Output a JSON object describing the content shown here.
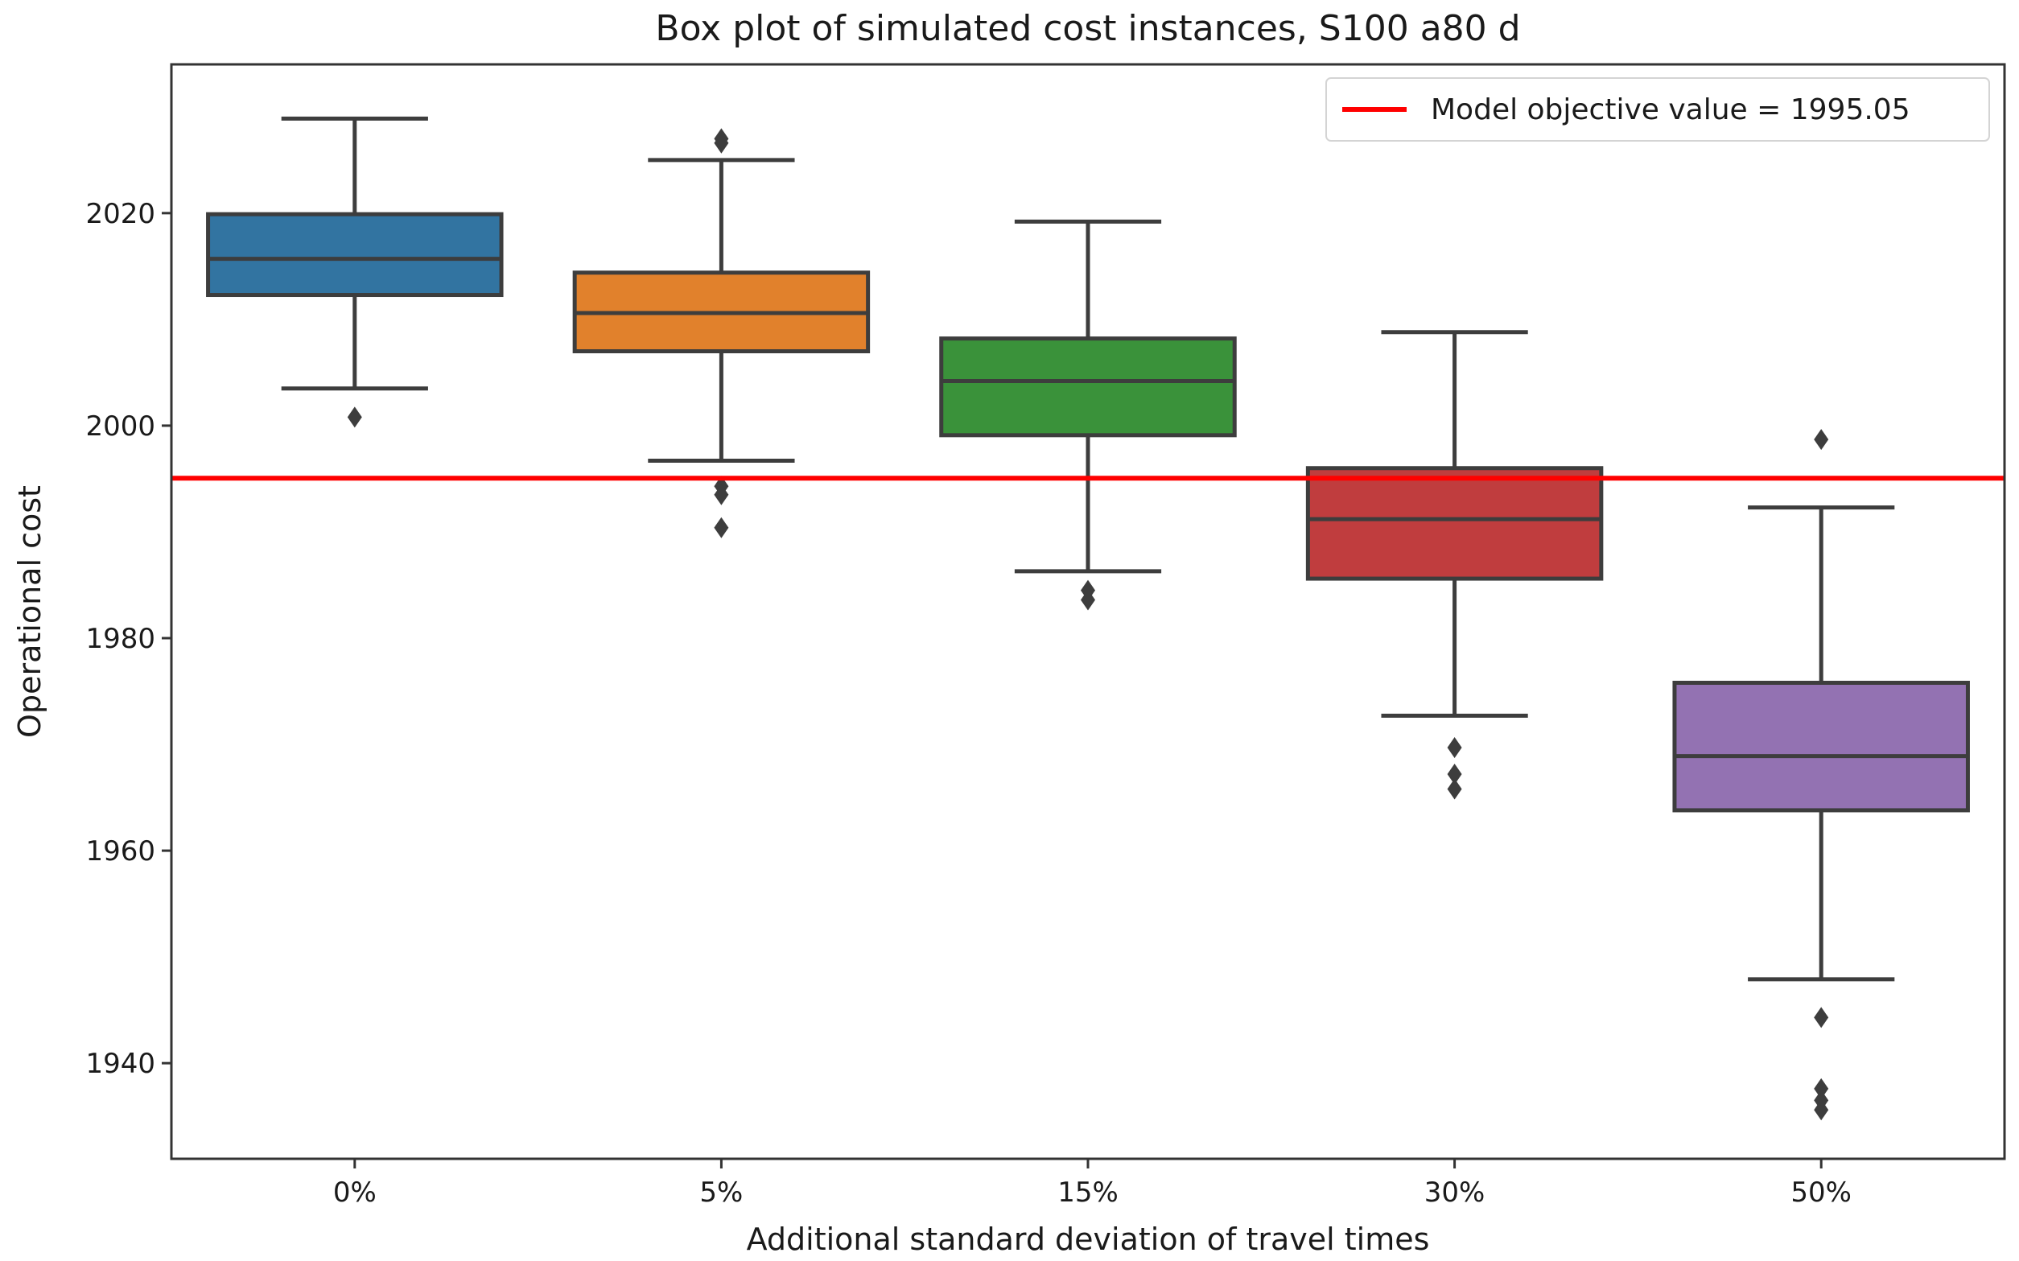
{
  "chart_data": {
    "type": "box",
    "title": "Box plot of simulated cost instances, S100 a80 d",
    "xlabel": "Additional standard deviation of travel times",
    "ylabel": "Operational cost",
    "ylim": [
      1931,
      2034
    ],
    "yticks": [
      1940,
      1960,
      1980,
      2000,
      2020
    ],
    "categories": [
      "0%",
      "5%",
      "15%",
      "30%",
      "50%"
    ],
    "colors": [
      "#3274a1",
      "#e1812c",
      "#3a923a",
      "#c03d3e",
      "#9372b2"
    ],
    "boxes": [
      {
        "whisker_low": 2003.5,
        "q1": 2012.3,
        "median": 2015.7,
        "q3": 2019.9,
        "whisker_high": 2028.9,
        "outliers": [
          2000.8
        ]
      },
      {
        "whisker_low": 1996.7,
        "q1": 2007.0,
        "median": 2010.6,
        "q3": 2014.4,
        "whisker_high": 2025.0,
        "outliers": [
          2026.6,
          2027.0,
          1994.3,
          1993.5,
          1990.4
        ]
      },
      {
        "whisker_low": 1986.3,
        "q1": 1999.1,
        "median": 2004.2,
        "q3": 2008.2,
        "whisker_high": 2019.2,
        "outliers": [
          1984.5,
          1983.6
        ]
      },
      {
        "whisker_low": 1972.7,
        "q1": 1985.6,
        "median": 1991.2,
        "q3": 1996.0,
        "whisker_high": 2008.8,
        "outliers": [
          1969.7,
          1967.2,
          1965.8
        ]
      },
      {
        "whisker_low": 1947.9,
        "q1": 1963.8,
        "median": 1968.9,
        "q3": 1975.8,
        "whisker_high": 1992.3,
        "outliers": [
          1998.7,
          1944.3,
          1937.6,
          1936.5,
          1935.6
        ]
      }
    ],
    "reference_line": {
      "value": 1995.05,
      "color": "#ff0000",
      "label": "Model objective value = 1995.05"
    },
    "legend_position": "top-right"
  }
}
